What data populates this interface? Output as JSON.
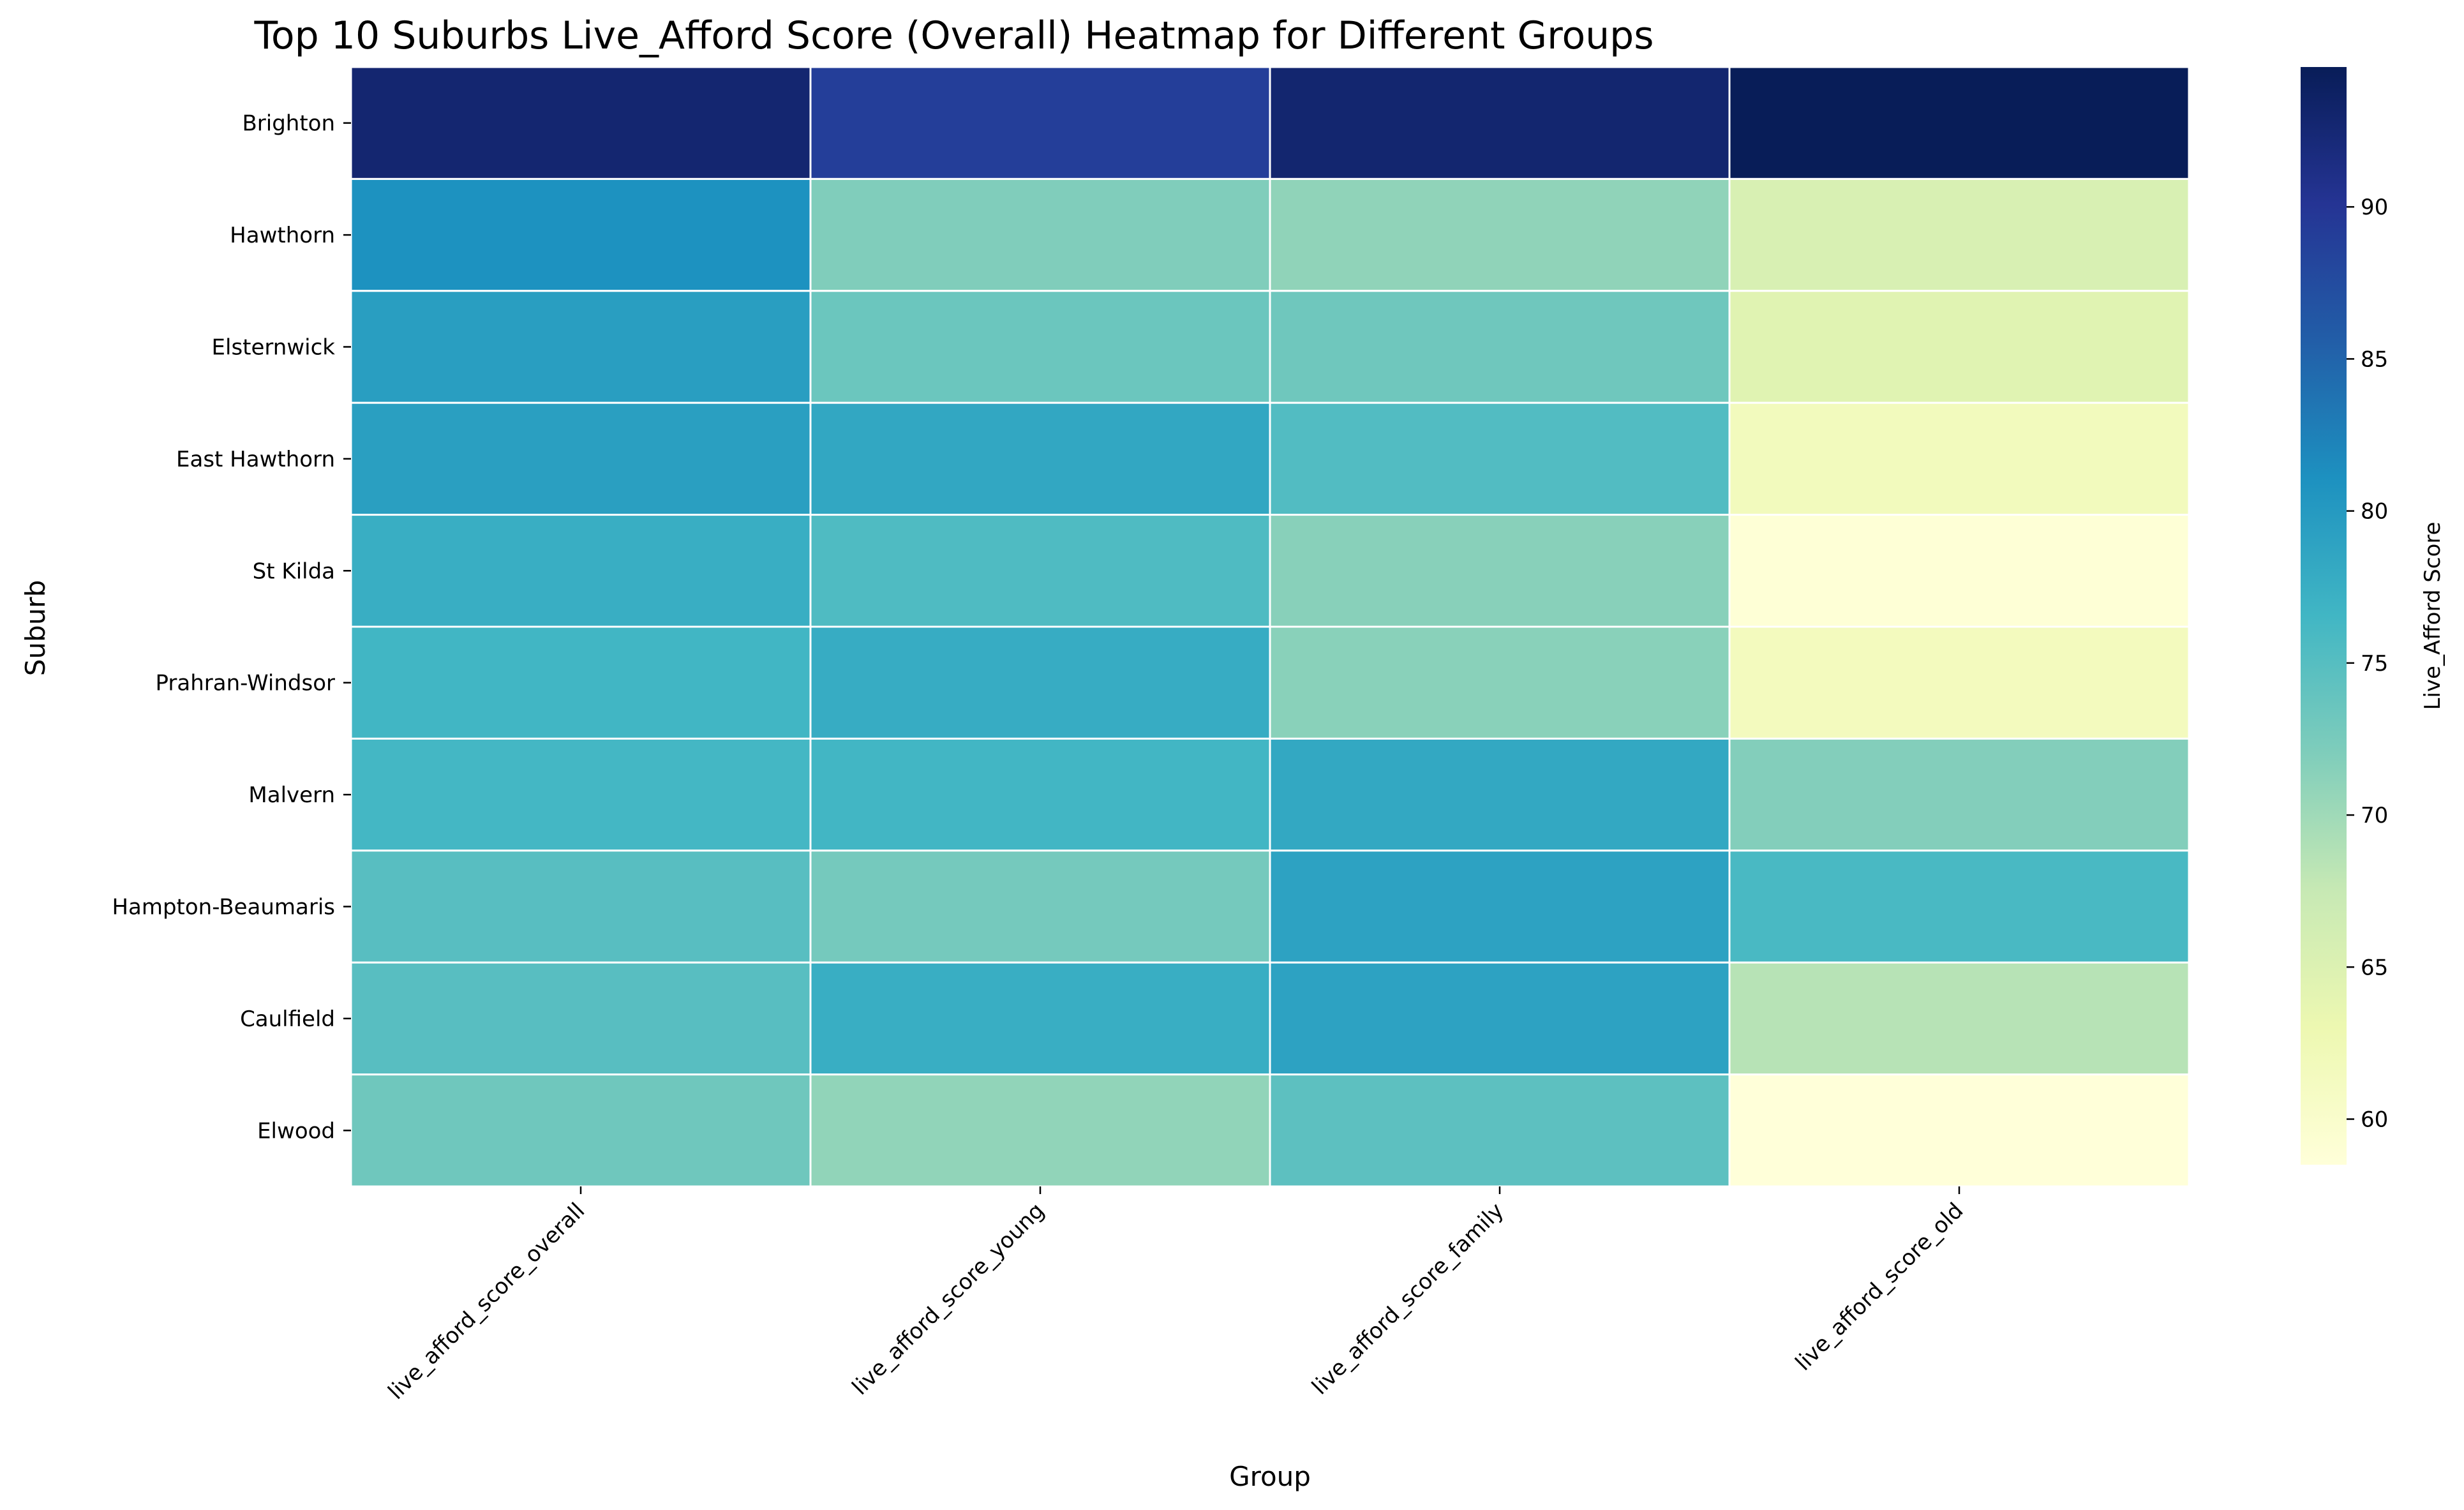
{
  "chart_data": {
    "type": "heatmap",
    "title": "Top 10 Suburbs Live_Afford Score (Overall) Heatmap for Different Groups",
    "xlabel": "Group",
    "ylabel": "Suburb",
    "colorbar_label": "Live_Afford Score",
    "colormap": "YlGnBu",
    "vmin": 58.5,
    "vmax": 94.6,
    "colorbar_ticks": [
      60,
      65,
      70,
      75,
      80,
      85,
      90
    ],
    "columns": [
      "live_afford_score_overall",
      "live_afford_score_young",
      "live_afford_score_family",
      "live_afford_score_old"
    ],
    "rows": [
      "Brighton",
      "Hawthorn",
      "Elsternwick",
      "East Hawthorn",
      "St Kilda",
      "Prahran-Windsor",
      "Malvern",
      "Hampton-Beaumaris",
      "Caulfield",
      "Elwood"
    ],
    "values": [
      [
        92.8,
        89.0,
        92.9,
        94.6
      ],
      [
        81.0,
        72.0,
        71.0,
        65.5
      ],
      [
        79.5,
        73.5,
        73.2,
        64.5
      ],
      [
        79.4,
        78.4,
        75.3,
        61.7
      ],
      [
        77.5,
        75.5,
        71.5,
        58.8
      ],
      [
        76.6,
        77.8,
        71.4,
        61.5
      ],
      [
        76.3,
        76.5,
        78.3,
        71.8
      ],
      [
        74.9,
        72.8,
        79.0,
        76.0
      ],
      [
        74.9,
        77.5,
        79.0,
        68.5
      ],
      [
        73.2,
        70.9,
        74.5,
        58.5
      ]
    ]
  }
}
